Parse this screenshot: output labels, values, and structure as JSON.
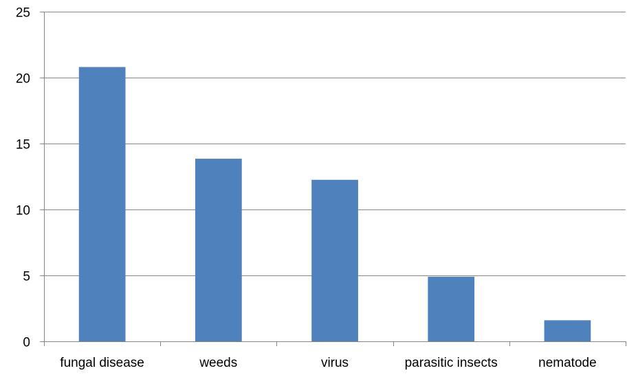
{
  "chart_data": {
    "type": "bar",
    "categories": [
      "fungal disease",
      "weeds",
      "virus",
      "parasitic insects",
      "nematode"
    ],
    "values": [
      20.8,
      13.85,
      12.25,
      4.9,
      1.6
    ],
    "ylim": [
      0,
      25
    ],
    "yticks": [
      0,
      5,
      10,
      15,
      20,
      25
    ],
    "grid": true,
    "legend": "none",
    "colors": {
      "bar": "#4f81bd",
      "grid": "#868686",
      "axis": "#868686"
    }
  }
}
